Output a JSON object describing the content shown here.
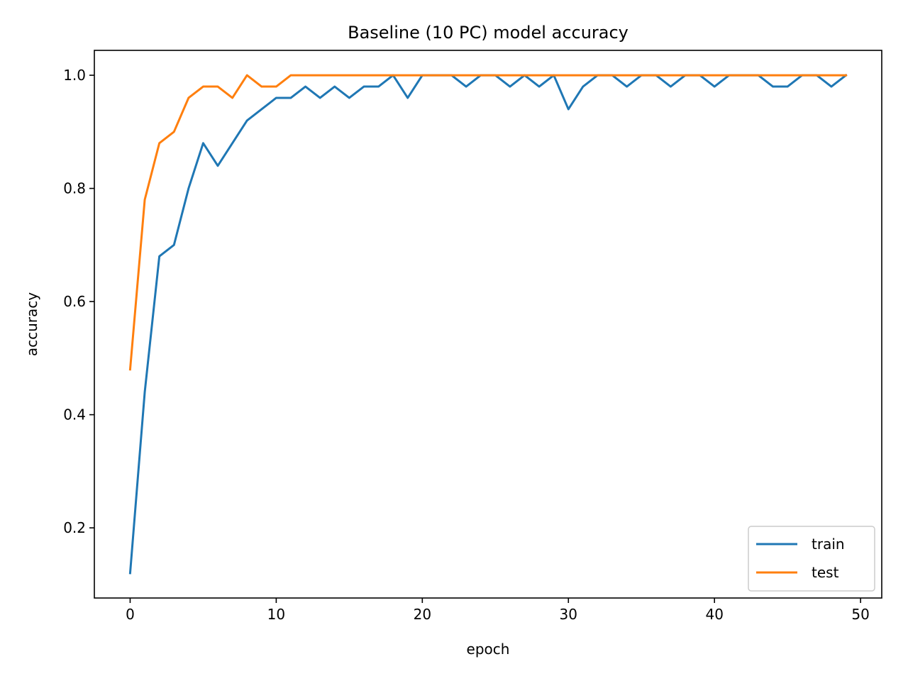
{
  "chart_data": {
    "type": "line",
    "title": "Baseline (10 PC) model accuracy",
    "xlabel": "epoch",
    "ylabel": "accuracy",
    "xlim": [
      -2.45,
      51.45
    ],
    "ylim": [
      0.076,
      1.044
    ],
    "xticks": [
      0,
      10,
      20,
      30,
      40,
      50
    ],
    "yticks": [
      0.2,
      0.4,
      0.6,
      0.8,
      1.0
    ],
    "xtick_labels": [
      "0",
      "10",
      "20",
      "30",
      "40",
      "50"
    ],
    "ytick_labels": [
      "0.2",
      "0.4",
      "0.6",
      "0.8",
      "1.0"
    ],
    "grid": false,
    "legend_position": "lower-right",
    "x": [
      0,
      1,
      2,
      3,
      4,
      5,
      6,
      7,
      8,
      9,
      10,
      11,
      12,
      13,
      14,
      15,
      16,
      17,
      18,
      19,
      20,
      21,
      22,
      23,
      24,
      25,
      26,
      27,
      28,
      29,
      30,
      31,
      32,
      33,
      34,
      35,
      36,
      37,
      38,
      39,
      40,
      41,
      42,
      43,
      44,
      45,
      46,
      47,
      48,
      49
    ],
    "series": [
      {
        "name": "train",
        "color": "#1f77b4",
        "values": [
          0.12,
          0.44,
          0.68,
          0.7,
          0.8,
          0.88,
          0.84,
          0.88,
          0.92,
          0.94,
          0.96,
          0.96,
          0.98,
          0.96,
          0.98,
          0.96,
          0.98,
          0.98,
          1.0,
          0.96,
          1.0,
          1.0,
          1.0,
          0.98,
          1.0,
          1.0,
          0.98,
          1.0,
          0.98,
          1.0,
          0.94,
          0.98,
          1.0,
          1.0,
          0.98,
          1.0,
          1.0,
          0.98,
          1.0,
          1.0,
          0.98,
          1.0,
          1.0,
          1.0,
          0.98,
          0.98,
          1.0,
          1.0,
          0.98,
          1.0
        ]
      },
      {
        "name": "test",
        "color": "#ff7f0e",
        "values": [
          0.48,
          0.78,
          0.88,
          0.9,
          0.96,
          0.98,
          0.98,
          0.96,
          1.0,
          0.98,
          0.98,
          1.0,
          1.0,
          1.0,
          1.0,
          1.0,
          1.0,
          1.0,
          1.0,
          1.0,
          1.0,
          1.0,
          1.0,
          1.0,
          1.0,
          1.0,
          1.0,
          1.0,
          1.0,
          1.0,
          1.0,
          1.0,
          1.0,
          1.0,
          1.0,
          1.0,
          1.0,
          1.0,
          1.0,
          1.0,
          1.0,
          1.0,
          1.0,
          1.0,
          1.0,
          1.0,
          1.0,
          1.0,
          1.0,
          1.0
        ]
      }
    ]
  }
}
